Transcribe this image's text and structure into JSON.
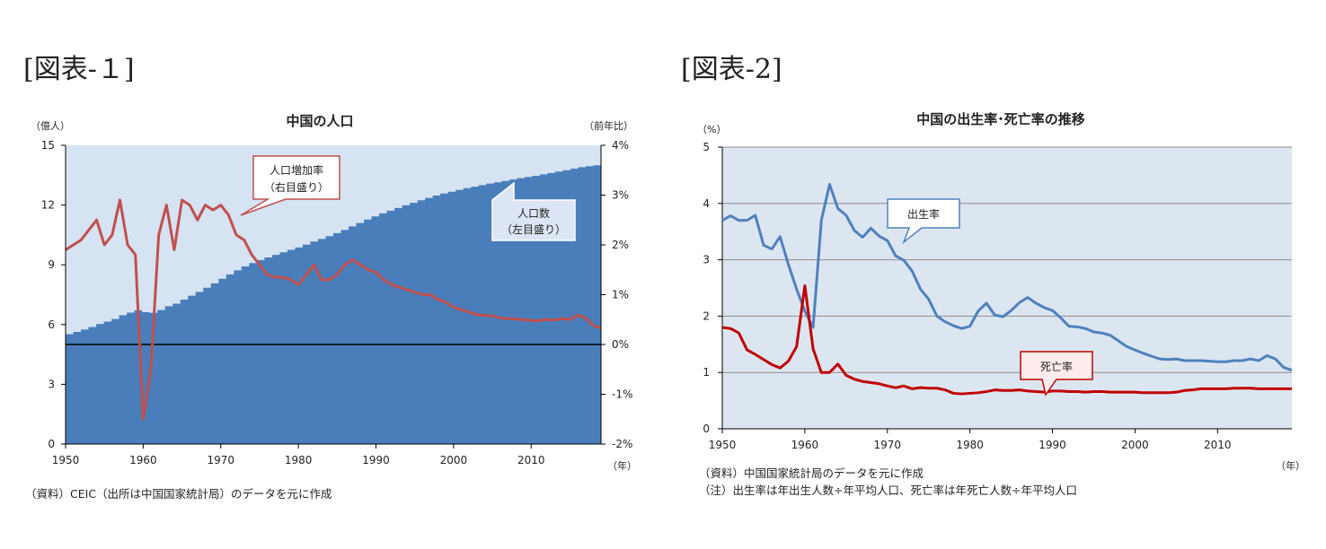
{
  "figure_labels": [
    "[図表-１]",
    "[図表-2]"
  ],
  "chart_data": [
    {
      "type": "area+line",
      "title": "中国の人口",
      "ylabel_left": "（億人）",
      "ylabel_right": "（前年比）",
      "xlabel": "（年）",
      "xlim": [
        1950,
        2019
      ],
      "ylim_left": [
        0,
        15
      ],
      "ylim_right": [
        -2,
        4
      ],
      "yticks_left": [
        "0",
        "3",
        "6",
        "9",
        "12",
        "15"
      ],
      "yticks_right": [
        "-2%",
        "-1%",
        "0%",
        "1%",
        "2%",
        "3%",
        "4%"
      ],
      "xticks": [
        "1950",
        "1960",
        "1970",
        "1980",
        "1990",
        "2000",
        "2010"
      ],
      "grid": false,
      "series": [
        {
          "name": "人口数",
          "axis": "left",
          "kind": "stepped-area",
          "x": [
            1950,
            1951,
            1952,
            1953,
            1954,
            1955,
            1956,
            1957,
            1958,
            1959,
            1960,
            1961,
            1962,
            1963,
            1964,
            1965,
            1966,
            1967,
            1968,
            1969,
            1970,
            1971,
            1972,
            1973,
            1974,
            1975,
            1976,
            1977,
            1978,
            1979,
            1980,
            1981,
            1982,
            1983,
            1984,
            1985,
            1986,
            1987,
            1988,
            1989,
            1990,
            1991,
            1992,
            1993,
            1994,
            1995,
            1996,
            1997,
            1998,
            1999,
            2000,
            2001,
            2002,
            2003,
            2004,
            2005,
            2006,
            2007,
            2008,
            2009,
            2010,
            2011,
            2012,
            2013,
            2014,
            2015,
            2016,
            2017,
            2018,
            2019
          ],
          "values": [
            5.52,
            5.63,
            5.75,
            5.88,
            6.03,
            6.15,
            6.28,
            6.47,
            6.6,
            6.72,
            6.62,
            6.59,
            6.73,
            6.92,
            7.05,
            7.25,
            7.45,
            7.64,
            7.85,
            8.07,
            8.3,
            8.52,
            8.72,
            8.92,
            9.09,
            9.24,
            9.37,
            9.5,
            9.63,
            9.75,
            9.87,
            10.01,
            10.17,
            10.3,
            10.44,
            10.59,
            10.75,
            10.93,
            11.1,
            11.27,
            11.43,
            11.58,
            11.72,
            11.85,
            11.99,
            12.11,
            12.24,
            12.36,
            12.48,
            12.58,
            12.67,
            12.76,
            12.85,
            12.92,
            13.0,
            13.08,
            13.14,
            13.21,
            13.28,
            13.35,
            13.41,
            13.47,
            13.54,
            13.61,
            13.68,
            13.75,
            13.83,
            13.9,
            13.95,
            14.0
          ]
        },
        {
          "name": "人口増加率",
          "axis": "right",
          "kind": "line",
          "x": [
            1950,
            1952,
            1954,
            1955,
            1956,
            1957,
            1958,
            1959,
            1960,
            1961,
            1962,
            1963,
            1964,
            1965,
            1966,
            1967,
            1968,
            1969,
            1970,
            1971,
            1972,
            1973,
            1974,
            1975,
            1976,
            1977,
            1978,
            1979,
            1980,
            1981,
            1982,
            1983,
            1984,
            1985,
            1986,
            1987,
            1988,
            1989,
            1990,
            1991,
            1992,
            1993,
            1994,
            1995,
            1996,
            1997,
            1998,
            1999,
            2000,
            2001,
            2002,
            2003,
            2004,
            2005,
            2006,
            2007,
            2008,
            2009,
            2010,
            2011,
            2012,
            2013,
            2014,
            2015,
            2016,
            2017,
            2018,
            2019
          ],
          "values": [
            1.9,
            2.1,
            2.5,
            2.0,
            2.2,
            2.9,
            2.0,
            1.8,
            -1.5,
            -0.5,
            2.2,
            2.8,
            1.9,
            2.9,
            2.8,
            2.5,
            2.8,
            2.7,
            2.8,
            2.6,
            2.2,
            2.1,
            1.8,
            1.6,
            1.4,
            1.35,
            1.35,
            1.3,
            1.2,
            1.4,
            1.6,
            1.3,
            1.3,
            1.4,
            1.6,
            1.7,
            1.6,
            1.5,
            1.45,
            1.3,
            1.2,
            1.15,
            1.1,
            1.05,
            1.0,
            1.0,
            0.9,
            0.85,
            0.75,
            0.7,
            0.65,
            0.6,
            0.58,
            0.58,
            0.53,
            0.52,
            0.51,
            0.5,
            0.48,
            0.48,
            0.5,
            0.49,
            0.52,
            0.5,
            0.59,
            0.53,
            0.38,
            0.33
          ]
        }
      ],
      "annotations": [
        {
          "lines": [
            "人口増加率",
            "（右目盛り）"
          ],
          "target_series": "人口増加率"
        },
        {
          "lines": [
            "人口数",
            "（左目盛り）"
          ],
          "target_series": "人口数"
        }
      ],
      "colors": {
        "population_area": "#4a7ebb",
        "background_area": "#d6e3f3",
        "growth_line": "#c0504d",
        "zero_line": "#000000"
      }
    },
    {
      "type": "line",
      "title": "中国の出生率･死亡率の推移",
      "ylabel": "（%）",
      "xlabel": "（年）",
      "xlim": [
        1950,
        2019
      ],
      "ylim": [
        0,
        5
      ],
      "yticks": [
        "0",
        "1",
        "2",
        "3",
        "4",
        "5"
      ],
      "xticks": [
        "1950",
        "1960",
        "1970",
        "1980",
        "1990",
        "2000",
        "2010"
      ],
      "grid": true,
      "series": [
        {
          "name": "出生率",
          "x": [
            1950,
            1951,
            1952,
            1953,
            1954,
            1955,
            1956,
            1957,
            1958,
            1959,
            1960,
            1961,
            1962,
            1963,
            1964,
            1965,
            1966,
            1967,
            1968,
            1969,
            1970,
            1971,
            1972,
            1973,
            1974,
            1975,
            1976,
            1977,
            1978,
            1979,
            1980,
            1981,
            1982,
            1983,
            1984,
            1985,
            1986,
            1987,
            1988,
            1989,
            1990,
            1991,
            1992,
            1993,
            1994,
            1995,
            1996,
            1997,
            1998,
            1999,
            2000,
            2001,
            2002,
            2003,
            2004,
            2005,
            2006,
            2007,
            2008,
            2009,
            2010,
            2011,
            2012,
            2013,
            2014,
            2015,
            2016,
            2017,
            2018,
            2019
          ],
          "values": [
            3.7,
            3.78,
            3.7,
            3.7,
            3.79,
            3.26,
            3.19,
            3.41,
            2.92,
            2.48,
            2.09,
            1.8,
            3.7,
            4.34,
            3.91,
            3.79,
            3.52,
            3.4,
            3.56,
            3.42,
            3.34,
            3.07,
            2.99,
            2.8,
            2.48,
            2.3,
            2.0,
            1.9,
            1.83,
            1.78,
            1.82,
            2.09,
            2.23,
            2.02,
            1.99,
            2.1,
            2.24,
            2.33,
            2.23,
            2.15,
            2.1,
            1.97,
            1.82,
            1.81,
            1.78,
            1.72,
            1.7,
            1.66,
            1.56,
            1.46,
            1.4,
            1.34,
            1.29,
            1.24,
            1.23,
            1.24,
            1.21,
            1.21,
            1.21,
            1.2,
            1.19,
            1.19,
            1.21,
            1.21,
            1.24,
            1.21,
            1.3,
            1.24,
            1.09,
            1.04
          ]
        },
        {
          "name": "死亡率",
          "x": [
            1950,
            1951,
            1952,
            1953,
            1954,
            1955,
            1956,
            1957,
            1958,
            1959,
            1960,
            1961,
            1962,
            1963,
            1964,
            1965,
            1966,
            1967,
            1968,
            1969,
            1970,
            1971,
            1972,
            1973,
            1974,
            1975,
            1976,
            1977,
            1978,
            1979,
            1980,
            1981,
            1982,
            1983,
            1984,
            1985,
            1986,
            1987,
            1988,
            1989,
            1990,
            1991,
            1992,
            1993,
            1994,
            1995,
            1996,
            1997,
            1998,
            1999,
            2000,
            2001,
            2002,
            2003,
            2004,
            2005,
            2006,
            2007,
            2008,
            2009,
            2010,
            2011,
            2012,
            2013,
            2014,
            2015,
            2016,
            2017,
            2018,
            2019
          ],
          "values": [
            1.8,
            1.78,
            1.7,
            1.4,
            1.32,
            1.23,
            1.14,
            1.08,
            1.2,
            1.46,
            2.54,
            1.42,
            1.0,
            1.0,
            1.15,
            0.95,
            0.88,
            0.84,
            0.82,
            0.8,
            0.76,
            0.73,
            0.76,
            0.71,
            0.73,
            0.72,
            0.72,
            0.69,
            0.63,
            0.62,
            0.63,
            0.64,
            0.66,
            0.69,
            0.68,
            0.68,
            0.69,
            0.67,
            0.66,
            0.65,
            0.67,
            0.67,
            0.66,
            0.66,
            0.65,
            0.66,
            0.66,
            0.65,
            0.65,
            0.65,
            0.65,
            0.64,
            0.64,
            0.64,
            0.64,
            0.65,
            0.68,
            0.69,
            0.71,
            0.71,
            0.71,
            0.71,
            0.72,
            0.72,
            0.72,
            0.71,
            0.71,
            0.71,
            0.71,
            0.71
          ]
        }
      ],
      "annotations": [
        {
          "lines": [
            "出生率"
          ],
          "target_series": "出生率"
        },
        {
          "lines": [
            "死亡率"
          ],
          "target_series": "死亡率"
        }
      ],
      "colors": {
        "birth_line": "#4f81bd",
        "death_line": "#c00000",
        "plot_bg": "#dce6f1",
        "grid": "#8c8c8c"
      }
    }
  ],
  "notes": {
    "chart1": "（資料）CEIC（出所は中国国家統計局）のデータを元に作成",
    "chart2_line1": "（資料）中国国家統計局のデータを元に作成",
    "chart2_line2": "（注）出生率は年出生人数÷年平均人口、死亡率は年死亡人数÷年平均人口"
  }
}
